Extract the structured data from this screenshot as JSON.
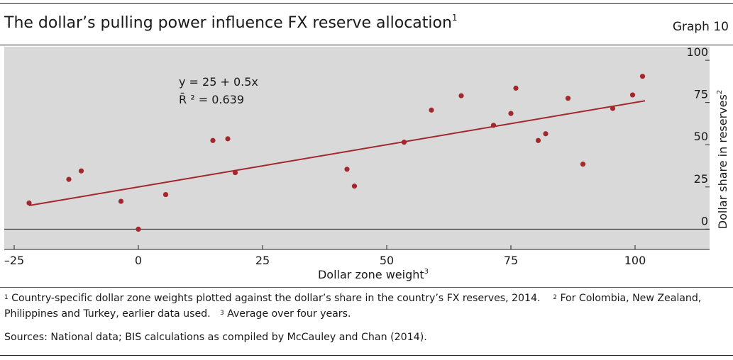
{
  "header": {
    "title": "The dollar’s pulling power influence FX reserve allocation",
    "title_note": "1",
    "graph_label": "Graph 10"
  },
  "chart_data": {
    "type": "scatter",
    "xlabel": "Dollar zone weight",
    "xlabel_note": "3",
    "ylabel": "Dollar share in reserves",
    "ylabel_note": "2",
    "xlim": [
      -27,
      115
    ],
    "ylim": [
      -12,
      108
    ],
    "x_ticks": [
      -25,
      0,
      25,
      50,
      75,
      100
    ],
    "x_tick_labels": [
      "–25",
      "0",
      "25",
      "50",
      "75",
      "100"
    ],
    "y_ticks": [
      0,
      25,
      50,
      75,
      100
    ],
    "y_tick_labels": [
      "0",
      "25",
      "50",
      "75",
      "100"
    ],
    "y_axis_position": "right",
    "grid": false,
    "background_color": "#d9d9d9",
    "point_color": "#a3282e",
    "line_color": "#a3282e",
    "points": [
      {
        "x": -22,
        "y": 15.5
      },
      {
        "x": -14,
        "y": 29.5
      },
      {
        "x": -11.5,
        "y": 34.5
      },
      {
        "x": -3.5,
        "y": 16.5
      },
      {
        "x": 0,
        "y": 0
      },
      {
        "x": 5.5,
        "y": 20.5
      },
      {
        "x": 15,
        "y": 52.5
      },
      {
        "x": 18,
        "y": 53.5
      },
      {
        "x": 19.5,
        "y": 33.5
      },
      {
        "x": 42,
        "y": 35.5
      },
      {
        "x": 43.5,
        "y": 25.5
      },
      {
        "x": 53.5,
        "y": 51.5
      },
      {
        "x": 59,
        "y": 70.5
      },
      {
        "x": 65,
        "y": 79
      },
      {
        "x": 71.5,
        "y": 61.5
      },
      {
        "x": 75,
        "y": 68.5
      },
      {
        "x": 76,
        "y": 83.5
      },
      {
        "x": 80.5,
        "y": 52.5
      },
      {
        "x": 82,
        "y": 56.5
      },
      {
        "x": 86.5,
        "y": 77.5
      },
      {
        "x": 89.5,
        "y": 38.5
      },
      {
        "x": 95.5,
        "y": 71.5
      },
      {
        "x": 99.5,
        "y": 79.5
      },
      {
        "x": 101.5,
        "y": 90.5
      }
    ],
    "regression": {
      "intercept": 25,
      "slope": 0.5,
      "x_range": [
        -22,
        102
      ],
      "equation": "y = 25 + 0.5x",
      "r2_label": "R̄ ² = 0.639"
    }
  },
  "footnotes": {
    "note1_mark": "1",
    "note1": "Country-specific dollar zone weights plotted against the dollar’s share in the country’s FX reserves, 2014.",
    "note2_mark": "2",
    "note2": "For Colombia, New Zealand,",
    "note2_cont": "Philippines and Turkey, earlier data used.",
    "note3_mark": "3",
    "note3": "Average over four years.",
    "sources": "Sources: National data; BIS calculations as compiled by McCauley and Chan (2014)."
  }
}
